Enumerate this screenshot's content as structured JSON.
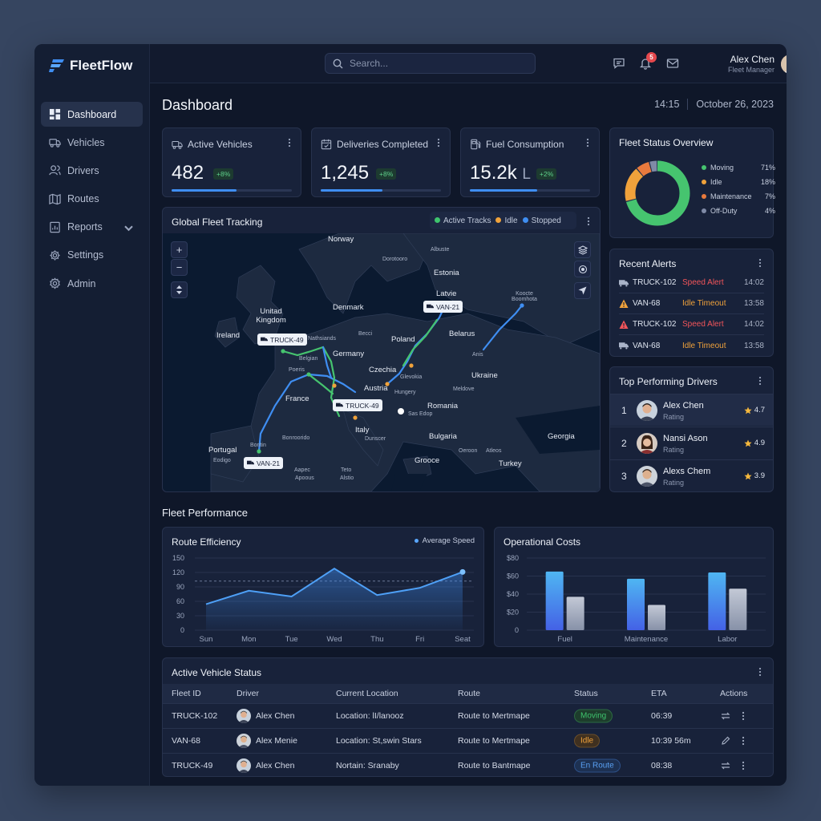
{
  "app": {
    "name": "FleetFlow"
  },
  "sidebar": {
    "items": [
      {
        "label": "Dashboard",
        "icon": "dashboard-icon",
        "active": true
      },
      {
        "label": "Vehicles",
        "icon": "truck-icon"
      },
      {
        "label": "Drivers",
        "icon": "users-icon"
      },
      {
        "label": "Routes",
        "icon": "map-icon"
      },
      {
        "label": "Reports",
        "icon": "report-icon"
      },
      {
        "label": "Settings",
        "icon": "gear-icon"
      },
      {
        "label": "Admin",
        "icon": "admin-gear-icon"
      }
    ]
  },
  "header": {
    "search_placeholder": "Search...",
    "notification_count": "5",
    "user_name": "Alex Chen",
    "user_role": "Fleet Manager"
  },
  "page": {
    "title": "Dashboard",
    "time": "14:15",
    "date": "October 26, 2023"
  },
  "kpis": [
    {
      "label": "Active Vehicles",
      "value": "482",
      "unit": "",
      "change": "+8%",
      "progress": 0.54
    },
    {
      "label": "Deliveries Completed",
      "value": "1,245",
      "unit": "",
      "change": "+8%",
      "progress": 0.51
    },
    {
      "label": "Fuel Consumption",
      "value": "15.2k",
      "unit": "L",
      "change": "+2%",
      "progress": 0.56
    }
  ],
  "map": {
    "title": "Global Fleet Tracking",
    "legend": [
      {
        "label": "Active Tracks",
        "color": "#3ec46d"
      },
      {
        "label": "Idle",
        "color": "#f0a23b"
      },
      {
        "label": "Stopped",
        "color": "#3f8ef2"
      }
    ],
    "labels": [
      "Norway",
      "Albuste",
      "Dorotooro",
      "Estonia",
      "Latvie",
      "Koocte Boomhota",
      "Unitad Kingdom",
      "Denmark",
      "Ireland",
      "Nathsiands",
      "Becci",
      "Poland",
      "Belarus",
      "Belgian",
      "Germany",
      "Anis",
      "Poeris",
      "Czechia",
      "Glevokia",
      "Ukraine",
      "Austria",
      "Hungery",
      "Meldove",
      "France",
      "Romania",
      "Italy",
      "Dunscer",
      "Bulgaria",
      "Georgia",
      "Portugal",
      "Bontin",
      "Bonroorido",
      "Eodigo",
      "Oeroon",
      "Atleos",
      "Grooce",
      "Turkey",
      "Aapec",
      "Apoous",
      "Teto",
      "Alstio",
      "Sas Edop"
    ],
    "vehicles": [
      "TRUCK-49",
      "VAN-21",
      "TRUCK-49",
      "VAN-21"
    ]
  },
  "fleet_status": {
    "title": "Fleet Status Overview",
    "segments": [
      {
        "label": "Moving",
        "value": 71,
        "display": "71%",
        "color": "#46c46f"
      },
      {
        "label": "Idle",
        "value": 18,
        "display": "18%",
        "color": "#f0a23b"
      },
      {
        "label": "Maintenance",
        "value": 7,
        "display": "7%",
        "color": "#e87a3d"
      },
      {
        "label": "Off-Duty",
        "value": 4,
        "display": "4%",
        "color": "#7f8aa6"
      }
    ]
  },
  "alerts": {
    "title": "Recent Alerts",
    "items": [
      {
        "id": "TRUCK-102",
        "type": "Speed Alert",
        "time": "14:02",
        "icon": "truck-icon",
        "color": "#f2555a"
      },
      {
        "id": "VAN-68",
        "type": "Idle Timeout",
        "time": "13:58",
        "icon": "warning-icon",
        "color": "#f0a23b"
      },
      {
        "id": "TRUCK-102",
        "type": "Speed Alert",
        "time": "14:02",
        "icon": "warning-icon",
        "color": "#f2555a"
      },
      {
        "id": "VAN-68",
        "type": "Idle Timeout",
        "time": "13:58",
        "icon": "truck-icon",
        "color": "#f0a23b"
      }
    ]
  },
  "drivers": {
    "title": "Top Performing Drivers",
    "items": [
      {
        "rank": "1",
        "name": "Alex Chen",
        "sub": "Rating",
        "rating": "4.7"
      },
      {
        "rank": "2",
        "name": "Nansi Ason",
        "sub": "Rating",
        "rating": "4.9"
      },
      {
        "rank": "3",
        "name": "Alexs Chem",
        "sub": "Rating",
        "rating": "3.9"
      }
    ]
  },
  "performance": {
    "title": "Fleet Performance"
  },
  "chart_data": [
    {
      "type": "area",
      "title": "Route Efficiency",
      "categories": [
        "Sun",
        "Mon",
        "Tue",
        "Wed",
        "Thu",
        "Fri",
        "Seat"
      ],
      "series": [
        {
          "name": "Average Speed",
          "values": [
            54,
            82,
            70,
            128,
            73,
            88,
            121
          ]
        }
      ],
      "reference_line": 102,
      "ylim": [
        0,
        150
      ],
      "yticks": [
        0,
        30,
        60,
        90,
        120,
        150
      ],
      "legend": "top-right",
      "grid": true
    },
    {
      "type": "bar",
      "title": "Operational Costs",
      "categories": [
        "Fuel",
        "Maintenance",
        "Labor"
      ],
      "series": [
        {
          "values": [
            65,
            57,
            64
          ],
          "color": "#3f8ef2"
        },
        {
          "values": [
            37,
            28,
            46
          ],
          "color": "#a6afc2"
        }
      ],
      "ylim": [
        0,
        80
      ],
      "yticks": [
        "0",
        "$20",
        "$40",
        "$60",
        "$80"
      ],
      "grid": true
    }
  ],
  "vehicle_table": {
    "title": "Active Vehicle Status",
    "columns": [
      "Fleet ID",
      "Driver",
      "Current Location",
      "Route",
      "Status",
      "ETA",
      "Actions"
    ],
    "rows": [
      {
        "id": "TRUCK-102",
        "driver": "Alex Chen",
        "location": "Location: lI/lanooz",
        "route": "Route to Mertmape",
        "status": "Moving",
        "status_color": "#3ec46d",
        "status_bg": "#1d3d2c",
        "eta": "06:39"
      },
      {
        "id": "VAN-68",
        "driver": "Alex Menie",
        "location": "Location: St,swin Stars",
        "route": "Route to Mertmape",
        "status": "Idle",
        "status_color": "#f0a23b",
        "status_bg": "#3f3020",
        "eta": "10:39 56m"
      },
      {
        "id": "TRUCK-49",
        "driver": "Alex Chen",
        "location": "Nortain: Sranaby",
        "route": "Route to Bantmape",
        "status": "En Route",
        "status_color": "#5aa2f5",
        "status_bg": "#1d3152",
        "eta": "08:38"
      }
    ]
  }
}
